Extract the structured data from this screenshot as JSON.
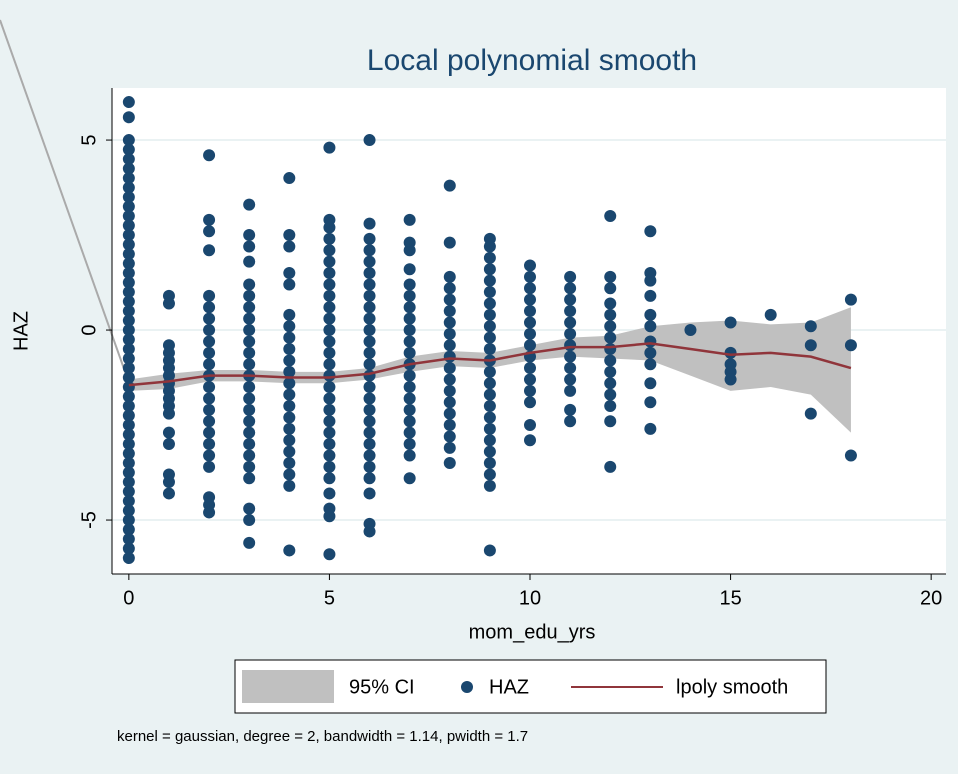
{
  "chart_data": {
    "type": "lpoly",
    "title": "Local polynomial smooth",
    "x_label": "mom_edu_yrs",
    "y_label": "HAZ",
    "note": "kernel = gaussian, degree = 2, bandwidth = 1.14, pwidth = 1.7",
    "xlim": [
      -0.42,
      20.37
    ],
    "ylim": [
      -6.42,
      6.37
    ],
    "xticks": [
      0,
      5,
      10,
      15,
      20
    ],
    "yticks": [
      -5,
      0,
      5
    ],
    "grid": true,
    "scatter": {
      "name": "HAZ",
      "color": "#1a476f",
      "x": [
        0,
        0,
        0,
        0,
        0,
        0,
        0,
        0,
        0,
        0,
        0,
        0,
        0,
        0,
        0,
        0,
        0,
        0,
        0,
        0,
        0,
        0,
        0,
        0,
        0,
        0,
        0,
        0,
        0,
        0,
        0,
        0,
        0,
        0,
        0,
        0,
        0,
        0,
        0,
        0,
        0,
        0,
        0,
        0,
        0,
        0,
        0,
        1,
        1,
        1,
        1,
        1,
        1,
        1,
        1,
        1,
        1,
        1,
        1,
        1,
        1,
        1,
        1,
        1,
        2,
        2,
        2,
        2,
        2,
        2,
        2,
        2,
        2,
        2,
        2,
        2,
        2,
        2,
        2,
        2,
        2,
        2,
        2,
        2,
        2,
        2,
        2,
        3,
        3,
        3,
        3,
        3,
        3,
        3,
        3,
        3,
        3,
        3,
        3,
        3,
        3,
        3,
        3,
        3,
        3,
        3,
        3,
        3,
        3,
        3,
        3,
        3,
        4,
        4,
        4,
        4,
        4,
        4,
        4,
        4,
        4,
        4,
        4,
        4,
        4,
        4,
        4,
        4,
        4,
        4,
        4,
        4,
        4,
        4,
        5,
        5,
        5,
        5,
        5,
        5,
        5,
        5,
        5,
        5,
        5,
        5,
        5,
        5,
        5,
        5,
        5,
        5,
        5,
        5,
        5,
        5,
        5,
        5,
        5,
        5,
        5,
        5,
        5,
        6,
        6,
        6,
        6,
        6,
        6,
        6,
        6,
        6,
        6,
        6,
        6,
        6,
        6,
        6,
        6,
        6,
        6,
        6,
        6,
        6,
        6,
        6,
        6,
        6,
        6,
        6,
        7,
        7,
        7,
        7,
        7,
        7,
        7,
        7,
        7,
        7,
        7,
        7,
        7,
        7,
        7,
        7,
        7,
        7,
        7,
        7,
        7,
        8,
        8,
        8,
        8,
        8,
        8,
        8,
        8,
        8,
        8,
        8,
        8,
        8,
        8,
        8,
        8,
        8,
        8,
        8,
        9,
        9,
        9,
        9,
        9,
        9,
        9,
        9,
        9,
        9,
        9,
        9,
        9,
        9,
        9,
        9,
        9,
        9,
        9,
        9,
        9,
        9,
        9,
        9,
        10,
        10,
        10,
        10,
        10,
        10,
        10,
        10,
        10,
        10,
        10,
        10,
        10,
        10,
        10,
        11,
        11,
        11,
        11,
        11,
        11,
        11,
        11,
        11,
        11,
        11,
        11,
        11,
        12,
        12,
        12,
        12,
        12,
        12,
        12,
        12,
        12,
        12,
        12,
        12,
        12,
        12,
        12,
        13,
        13,
        13,
        13,
        13,
        13,
        13,
        13,
        13,
        13,
        13,
        13,
        14,
        15,
        15,
        15,
        15,
        15,
        16,
        17,
        17,
        17,
        18,
        18,
        18
      ],
      "y": [
        6.0,
        5.6,
        5,
        4.75,
        4.5,
        4.25,
        4,
        3.75,
        3.5,
        3.25,
        3,
        2.75,
        2.5,
        2.25,
        2,
        1.75,
        1.5,
        1.25,
        1,
        0.75,
        0.5,
        0.25,
        0,
        -0.25,
        -0.5,
        -0.75,
        -1,
        -1.25,
        -1.5,
        -1.75,
        -2,
        -2.25,
        -2.5,
        -2.75,
        -3,
        -3.25,
        -3.5,
        -3.75,
        -4,
        -4.25,
        -4.5,
        -4.75,
        -5,
        -5.25,
        -5.5,
        -5.75,
        -6,
        0.9,
        0.7,
        -0.4,
        -0.6,
        -0.8,
        -1,
        -1.2,
        -1.4,
        -1.6,
        -1.8,
        -2,
        -2.2,
        -2.7,
        -3,
        -3.8,
        -4,
        -4.3,
        4.6,
        2.9,
        2.6,
        2.1,
        0.9,
        0.6,
        0.3,
        0,
        -0.3,
        -0.6,
        -0.9,
        -1.2,
        -1.5,
        -1.8,
        -2.1,
        -2.4,
        -2.7,
        -3,
        -3.3,
        -3.6,
        -4.4,
        -4.6,
        -4.8,
        3.3,
        2.5,
        2.2,
        1.8,
        1.2,
        0.9,
        0.6,
        0.3,
        0,
        -0.3,
        -0.6,
        -0.9,
        -1.2,
        -1.5,
        -1.8,
        -2.1,
        -2.4,
        -2.7,
        -3,
        -3.3,
        -3.6,
        -3.9,
        -4.7,
        -5,
        -5.6,
        4,
        2.5,
        2.2,
        1.5,
        1.2,
        0.4,
        0.1,
        -0.2,
        -0.5,
        -0.8,
        -1.1,
        -1.4,
        -1.7,
        -2,
        -2.3,
        -2.6,
        -2.9,
        -3.2,
        -3.5,
        -3.8,
        -4.1,
        -5.8,
        4.8,
        2.9,
        2.7,
        2.4,
        2.1,
        1.8,
        1.5,
        1.2,
        0.9,
        0.6,
        0.3,
        0,
        -0.3,
        -0.6,
        -0.9,
        -1.2,
        -1.5,
        -1.8,
        -2.1,
        -2.4,
        -2.7,
        -3,
        -3.3,
        -3.6,
        -3.9,
        -4.3,
        -4.7,
        -4.9,
        -5.9,
        5,
        2.8,
        2.4,
        2.1,
        1.8,
        1.5,
        1.2,
        0.9,
        0.6,
        0.3,
        0,
        -0.3,
        -0.6,
        -0.9,
        -1.2,
        -1.5,
        -1.8,
        -2.1,
        -2.4,
        -2.7,
        -3,
        -3.3,
        -3.6,
        -3.9,
        -4.3,
        -5.1,
        -5.3,
        2.9,
        2.3,
        2.1,
        1.6,
        1.2,
        0.9,
        0.6,
        0.3,
        0,
        -0.3,
        -0.6,
        -0.9,
        -1.2,
        -1.5,
        -1.8,
        -2.1,
        -2.4,
        -2.7,
        -3,
        -3.3,
        -3.9,
        3.8,
        2.3,
        1.4,
        1.1,
        0.8,
        0.5,
        0.2,
        -0.1,
        -0.4,
        -0.7,
        -1,
        -1.3,
        -1.6,
        -1.9,
        -2.2,
        -2.5,
        -2.8,
        -3.1,
        -3.5,
        2.4,
        2.2,
        1.9,
        1.6,
        1.3,
        1,
        0.7,
        0.4,
        0.1,
        -0.2,
        -0.5,
        -0.8,
        -1.1,
        -1.4,
        -1.7,
        -2,
        -2.3,
        -2.6,
        -2.9,
        -3.2,
        -3.5,
        -3.8,
        -4.1,
        -5.8,
        1.7,
        1.4,
        1.1,
        0.8,
        0.5,
        0.2,
        -0.1,
        -0.4,
        -0.7,
        -1,
        -1.3,
        -1.6,
        -1.9,
        -2.5,
        -2.9,
        1.4,
        1.1,
        0.8,
        0.5,
        0.2,
        -0.1,
        -0.4,
        -0.7,
        -1,
        -1.3,
        -1.6,
        -2.1,
        -2.4,
        3,
        1.4,
        1.1,
        0.7,
        0.4,
        0.1,
        -0.2,
        -0.5,
        -0.8,
        -1.1,
        -1.4,
        -1.7,
        -2,
        -2.4,
        -3.6,
        2.6,
        1.5,
        1.3,
        0.9,
        0.4,
        0.1,
        -0.3,
        -0.6,
        -0.9,
        -1.4,
        -1.9,
        -2.6,
        0,
        0.2,
        -0.6,
        -0.9,
        -1.1,
        -1.3,
        0.4,
        0.1,
        -0.4,
        -2.2,
        0.8,
        -0.4,
        -3.3
      ]
    },
    "smooth": {
      "name": "lpoly smooth",
      "color": "#90353b",
      "x": [
        0,
        1,
        2,
        3,
        4,
        5,
        6,
        7,
        8,
        9,
        10,
        11,
        12,
        13,
        14,
        15,
        16,
        17,
        18
      ],
      "values": [
        -1.45,
        -1.35,
        -1.2,
        -1.2,
        -1.25,
        -1.25,
        -1.15,
        -0.9,
        -0.75,
        -0.8,
        -0.6,
        -0.45,
        -0.45,
        -0.35,
        -0.5,
        -0.65,
        -0.6,
        -0.7,
        -1.0
      ]
    },
    "ci": {
      "name": "95% CI",
      "color": "#c0c0c0",
      "x": [
        0,
        1,
        2,
        3,
        4,
        5,
        6,
        7,
        8,
        9,
        10,
        11,
        12,
        13,
        14,
        15,
        16,
        17,
        18
      ],
      "upper": [
        -1.3,
        -1.15,
        -1.05,
        -1.05,
        -1.1,
        -1.1,
        -1.0,
        -0.7,
        -0.55,
        -0.6,
        -0.4,
        -0.2,
        -0.15,
        0.1,
        0.2,
        0.25,
        0.15,
        0.2,
        0.6
      ],
      "lower": [
        -1.6,
        -1.55,
        -1.35,
        -1.35,
        -1.4,
        -1.4,
        -1.3,
        -1.1,
        -0.95,
        -1.0,
        -0.8,
        -0.7,
        -0.75,
        -0.8,
        -1.2,
        -1.6,
        -1.5,
        -1.7,
        -2.7
      ]
    }
  }
}
